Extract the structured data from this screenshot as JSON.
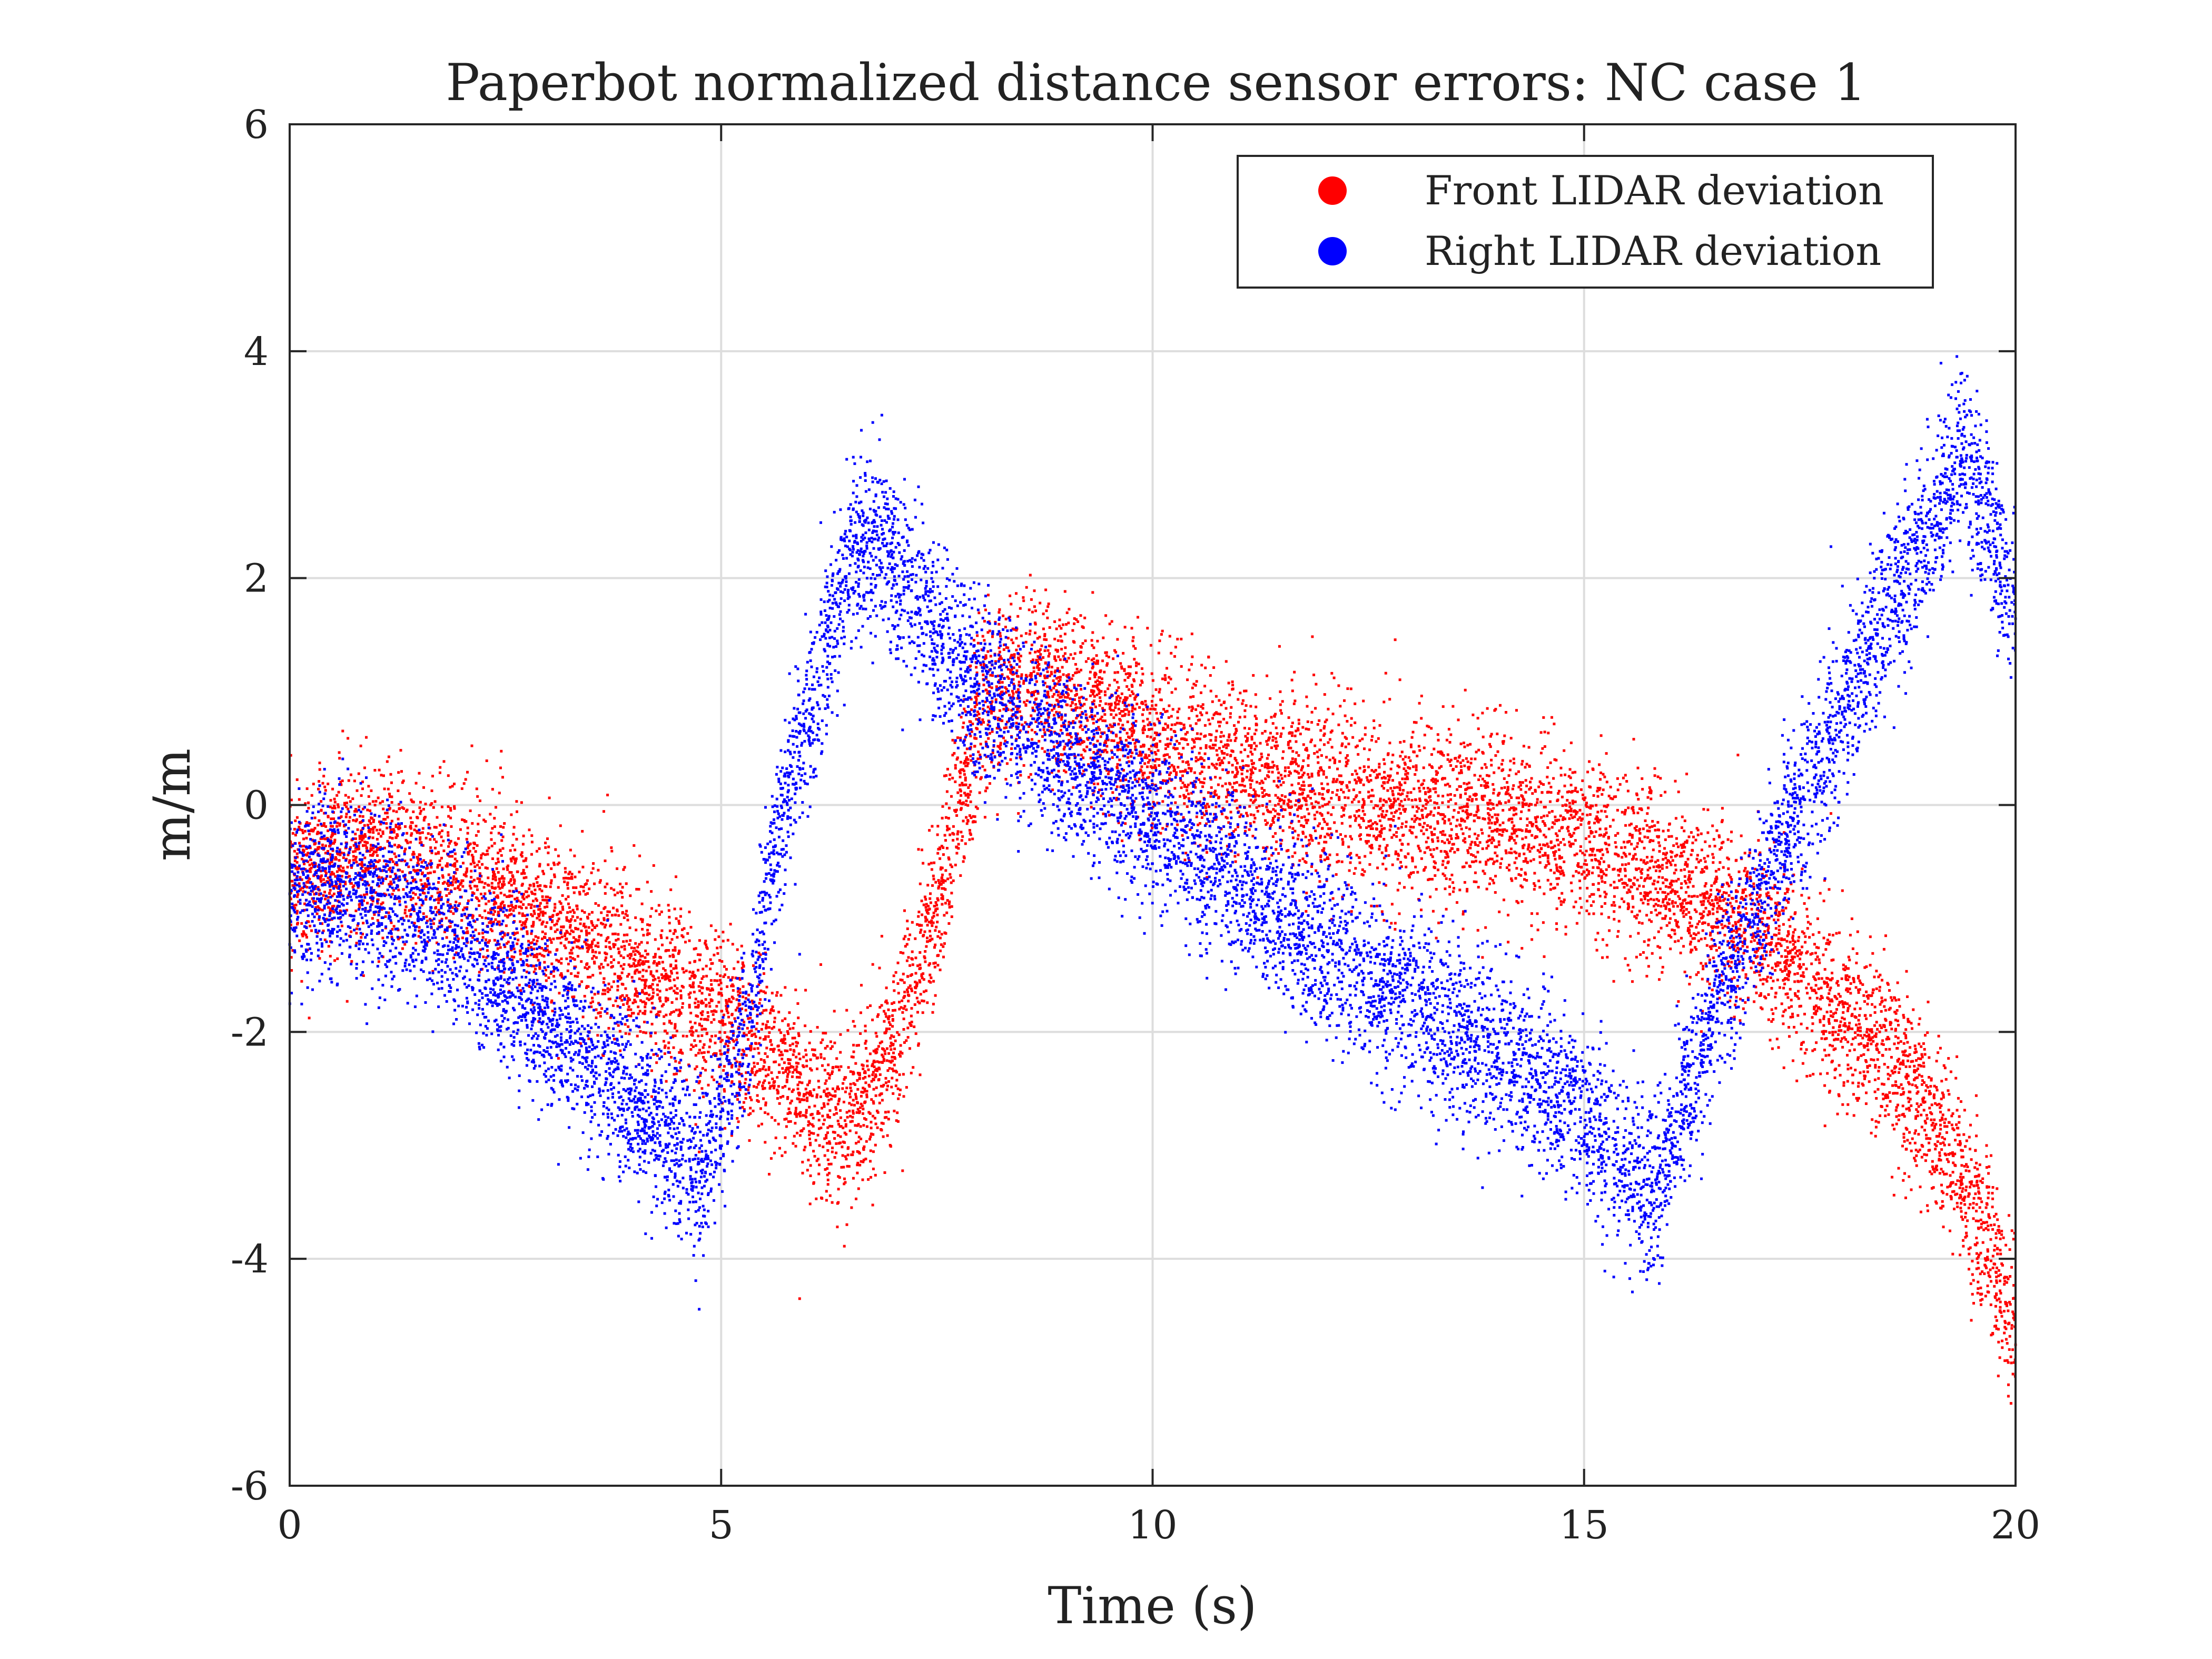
{
  "chart_data": {
    "type": "scatter",
    "title": "Paperbot normalized distance sensor errors: NC case 1",
    "xlabel": "Time (s)",
    "ylabel": "m/m",
    "xlim": [
      0,
      20
    ],
    "ylim": [
      -6,
      6
    ],
    "xticks": [
      0,
      5,
      10,
      15,
      20
    ],
    "yticks": [
      -6,
      -4,
      -2,
      0,
      2,
      4,
      6
    ],
    "xtick_labels": [
      "0",
      "5",
      "10",
      "15",
      "20"
    ],
    "ytick_labels": [
      "-6",
      "-4",
      "-2",
      "0",
      "2",
      "4",
      "6"
    ],
    "grid": true,
    "legend_position": "top-right",
    "series": [
      {
        "name": "Front LIDAR deviation",
        "color": "#ff0000",
        "points_per_unit_time": 500,
        "noise_std": 0.38,
        "trend": {
          "x": [
            0,
            0.5,
            1,
            2,
            3,
            4,
            5,
            5.5,
            6,
            6.5,
            7,
            7.5,
            8,
            8.5,
            9,
            10,
            11,
            12,
            13,
            14,
            15,
            16,
            17,
            18,
            19,
            19.5,
            20
          ],
          "y": [
            -0.6,
            -0.5,
            -0.4,
            -0.6,
            -1.0,
            -1.4,
            -1.9,
            -2.2,
            -2.6,
            -2.8,
            -2.2,
            -0.9,
            0.8,
            1.1,
            1.0,
            0.6,
            0.3,
            0.1,
            0.0,
            -0.1,
            -0.3,
            -0.7,
            -1.1,
            -1.8,
            -2.7,
            -3.5,
            -4.6
          ]
        }
      },
      {
        "name": "Right LIDAR deviation",
        "color": "#0000ff",
        "points_per_unit_time": 500,
        "noise_std": 0.38,
        "trend": {
          "x": [
            0,
            0.5,
            1,
            2,
            3,
            4,
            4.8,
            5.3,
            5.6,
            6,
            6.5,
            6.8,
            7.5,
            8,
            9,
            10,
            11,
            12,
            13,
            14,
            15,
            15.8,
            16.5,
            17,
            18,
            19,
            19.4,
            20
          ],
          "y": [
            -0.8,
            -0.7,
            -0.8,
            -1.2,
            -1.9,
            -2.6,
            -3.2,
            -2.0,
            -0.5,
            0.8,
            2.2,
            2.3,
            1.5,
            1.0,
            0.4,
            -0.1,
            -0.7,
            -1.3,
            -1.7,
            -2.2,
            -2.7,
            -3.5,
            -1.8,
            -0.9,
            0.9,
            2.4,
            3.1,
            1.8
          ]
        }
      }
    ]
  }
}
